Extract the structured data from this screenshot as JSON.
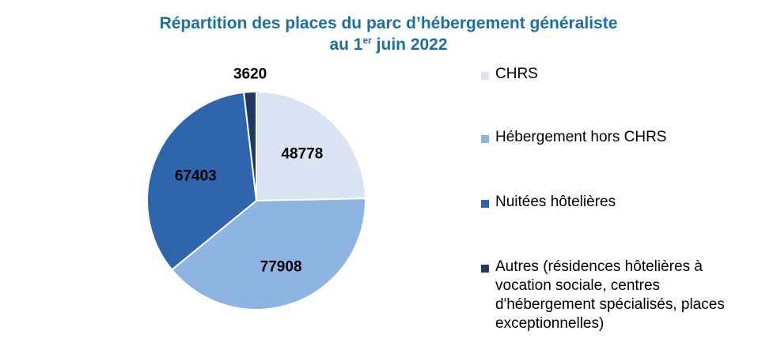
{
  "title": {
    "line1": "Répartition des places du parc d’hébergement généraliste",
    "line2_prefix": "au 1",
    "line2_sup": "er",
    "line2_suffix": " juin 2022"
  },
  "chart_data": {
    "type": "pie",
    "title": "Répartition des places du parc d’hébergement généraliste au 1er juin 2022",
    "legend_position": "right",
    "slices": [
      {
        "label": "CHRS",
        "value": 48778,
        "color": "#dae3f3"
      },
      {
        "label": "Hébergement hors CHRS",
        "value": 77908,
        "color": "#8eb4e3"
      },
      {
        "label": "Nuitées hôtelières",
        "value": 67403,
        "color": "#2e65ad"
      },
      {
        "label": "Autres (résidences hôtelières à vocation sociale, centres d'hébergement spécialisés, places exceptionnelles)",
        "value": 3620,
        "color": "#1f3864"
      }
    ],
    "data_labels": [
      "48778",
      "77908",
      "67403",
      "3620"
    ]
  }
}
